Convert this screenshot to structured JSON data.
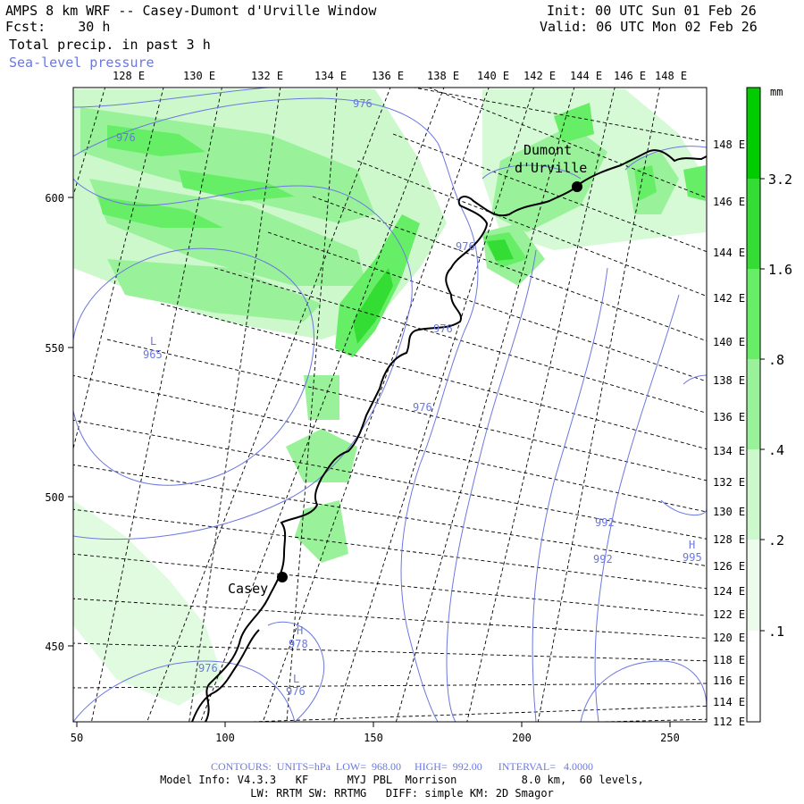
{
  "header": {
    "title": "AMPS 8 km WRF -- Casey-Dumont d'Urville Window",
    "fcst": "Fcst:    30 h",
    "field": "Total precip. in past 3 h",
    "contour_field": "Sea-level pressure",
    "init": "Init: 00 UTC Sun 01 Feb 26",
    "valid": "Valid: 06 UTC Mon 02 Feb 26"
  },
  "top_axis": {
    "labels": [
      "128 E",
      "130 E",
      "132 E",
      "134 E",
      "136 E",
      "138 E",
      "140 E",
      "142 E",
      "144 E",
      "146 E",
      "148 E"
    ]
  },
  "right_axis": {
    "labels": [
      "148 E",
      "146 E",
      "144 E",
      "142 E",
      "140 E",
      "138 E",
      "136 E",
      "134 E",
      "132 E",
      "130 E",
      "128 E",
      "126 E",
      "124 E",
      "122 E",
      "120 E",
      "118 E",
      "116 E",
      "114 E",
      "112 E"
    ]
  },
  "left_axis": {
    "labels": [
      "600",
      "550",
      "500",
      "450"
    ]
  },
  "bottom_axis": {
    "labels": [
      "50",
      "100",
      "150",
      "200",
      "250"
    ]
  },
  "stations": [
    {
      "name": "Casey"
    },
    {
      "name": "Dumont",
      "name2": "d'Urville"
    }
  ],
  "pressure_labels": [
    "976",
    "976",
    "976",
    "976",
    "976",
    "976",
    "965",
    "978",
    "976",
    "992",
    "992",
    "995"
  ],
  "pressure_marks": [
    "L",
    "H",
    "L",
    "H"
  ],
  "colorbar": {
    "unit": "mm",
    "levels": [
      "3.2",
      "1.6",
      ".8",
      ".4",
      ".2",
      ".1"
    ],
    "colors": [
      "#00cc00",
      "#33dd33",
      "#66ee66",
      "#99f299",
      "#ccf8cc",
      "#ecfcec"
    ]
  },
  "footer": {
    "contours": "CONTOURS:  UNITS=hPa  LOW=  968.00     HIGH=  992.00      INTERVAL=   4.0000",
    "model_info": "Model Info: V4.3.3   KF      MYJ PBL  Morrison          8.0 km,  60 levels,",
    "physics": "LW: RRTM SW: RRTMG   DIFF: simple KM: 2D Smagor"
  },
  "colors": {
    "contour": "#6b78e0",
    "coast": "#000000"
  }
}
